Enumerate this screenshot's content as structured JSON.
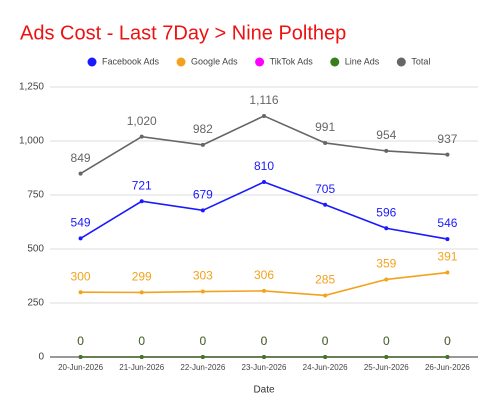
{
  "chart_data": {
    "type": "line",
    "title": "Ads Cost - Last 7Day > Nine Polthep",
    "x_label": "Date",
    "categories": [
      "20-Jun-2026",
      "21-Jun-2026",
      "22-Jun-2026",
      "23-Jun-2026",
      "24-Jun-2026",
      "25-Jun-2026",
      "26-Jun-2026"
    ],
    "series": [
      {
        "name": "Facebook Ads",
        "color": "#1a1aff",
        "values": [
          549,
          721,
          679,
          810,
          705,
          596,
          546
        ]
      },
      {
        "name": "Google Ads",
        "color": "#f4a21d",
        "values": [
          300,
          299,
          303,
          306,
          285,
          359,
          391
        ]
      },
      {
        "name": "TikTok Ads",
        "color": "#ff00ff",
        "values": [
          0,
          0,
          0,
          0,
          0,
          0,
          0
        ]
      },
      {
        "name": "Line Ads",
        "color": "#3a7d1e",
        "values": [
          0,
          0,
          0,
          0,
          0,
          0,
          0
        ]
      },
      {
        "name": "Total",
        "color": "#666666",
        "values": [
          849,
          1020,
          982,
          1116,
          991,
          954,
          937
        ],
        "value_labels": [
          "849",
          "1,020",
          "982",
          "1,116",
          "991",
          "954",
          "937"
        ]
      }
    ],
    "ylim": [
      0,
      1250
    ],
    "yticks": [
      0,
      250,
      500,
      750,
      {
        "value": 1000,
        "label": "1,000"
      },
      {
        "value": 1250,
        "label": "1,250"
      }
    ],
    "grid": true
  }
}
